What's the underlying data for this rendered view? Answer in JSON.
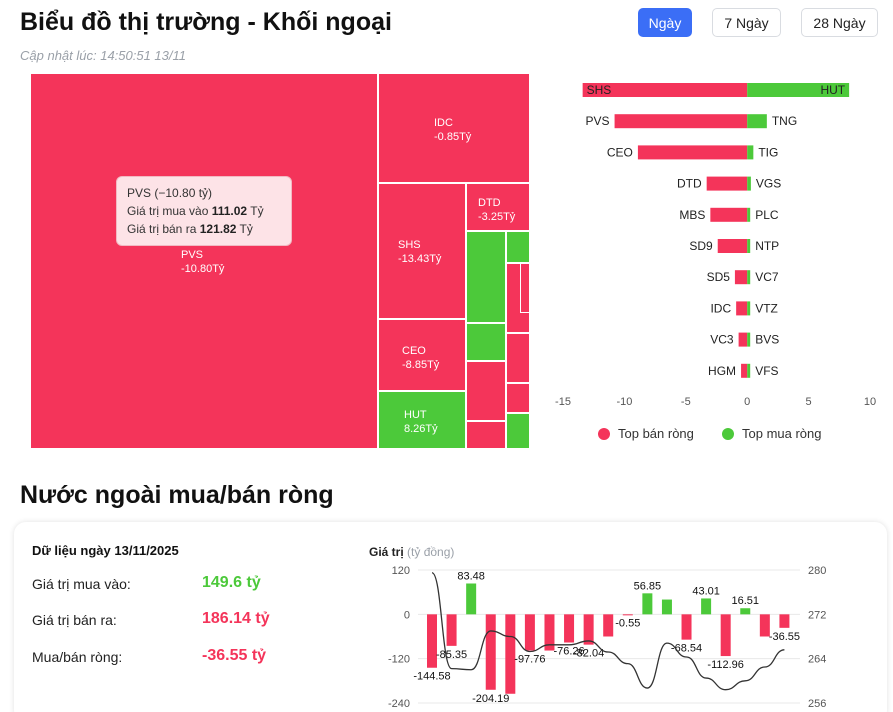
{
  "header": {
    "title": "Biểu đồ thị trường - Khối ngoại",
    "updated": "Cập nhật lúc: 14:50:51 13/11",
    "ranges": [
      {
        "label": "Ngày",
        "active": true
      },
      {
        "label": "7 Ngày",
        "active": false
      },
      {
        "label": "28 Ngày",
        "active": false
      }
    ]
  },
  "colors": {
    "sell": "#f4345a",
    "buy": "#4cc93a",
    "line": "#333333",
    "grid": "#e8e8e8"
  },
  "treemap": {
    "cells": [
      {
        "ticker": "PVS",
        "value": "-10.80Tỷ",
        "side": "sell"
      },
      {
        "ticker": "IDC",
        "value": "-0.85Tỷ",
        "side": "sell"
      },
      {
        "ticker": "SHS",
        "value": "-13.43Tỷ",
        "side": "sell"
      },
      {
        "ticker": "DTD",
        "value": "-3.25Tỷ",
        "side": "sell"
      },
      {
        "ticker": "CEO",
        "value": "-8.85Tỷ",
        "side": "sell"
      },
      {
        "ticker": "HUT",
        "value": "8.26Tỷ",
        "side": "buy"
      }
    ],
    "tooltip": {
      "title": "PVS (−10.80 tỷ)",
      "buy_label": "Giá trị mua vào",
      "buy_value": "111.02",
      "sell_label": "Giá trị bán ra",
      "sell_value": "121.82",
      "unit": "Tỷ"
    }
  },
  "chart_data": [
    {
      "type": "bar",
      "orientation": "horizontal-diverging",
      "sell_categories": [
        "SHS",
        "PVS",
        "CEO",
        "DTD",
        "MBS",
        "SD9",
        "SD5",
        "IDC",
        "VC3",
        "HGM"
      ],
      "sell_values": [
        -13.4,
        -10.8,
        -8.9,
        -3.3,
        -3.0,
        -2.4,
        -1.0,
        -0.9,
        -0.7,
        -0.5
      ],
      "buy_categories": [
        "HUT",
        "TNG",
        "TIG",
        "VGS",
        "PLC",
        "NTP",
        "VC7",
        "VTZ",
        "BVS",
        "VFS"
      ],
      "buy_values": [
        8.3,
        1.6,
        0.5,
        0.3,
        0.2,
        0.2,
        0.1,
        0.1,
        0.1,
        0.05
      ],
      "xlim": [
        -15,
        10
      ],
      "xticks": [
        -15,
        -10,
        -5,
        0,
        5,
        10
      ],
      "legend": [
        {
          "name": "Top bán ròng",
          "color": "#f4345a"
        },
        {
          "name": "Top mua ròng",
          "color": "#4cc93a"
        }
      ]
    },
    {
      "type": "bar+line",
      "title": "Giá trị",
      "unit": "(tỷ đồng)",
      "bars": [
        -144.58,
        -85.35,
        83.48,
        -204.19,
        -215,
        -97.76,
        -98,
        -76.26,
        -82.04,
        -60,
        -0.55,
        56.85,
        40,
        -68.54,
        43.01,
        -112.96,
        16.51,
        -60,
        -36.55
      ],
      "bar_labels": [
        "-144.58",
        "-85.35",
        "83.48",
        "-204.19",
        "",
        "-97.76",
        "",
        "-76.26",
        "-82.04",
        "",
        "-0.55",
        "56.85",
        "",
        "-68.54",
        "43.01",
        "-112.96",
        "16.51",
        "",
        "-36.55"
      ],
      "line": [
        279.5,
        262.2,
        262.0,
        269.0,
        268.0,
        265.3,
        266.5,
        266.5,
        267.2,
        265.2,
        263.1,
        258.7,
        266.8,
        264.3,
        260.5,
        258.4,
        260.0,
        262.5,
        265.6
      ],
      "y_left": {
        "min": -240,
        "max": 120,
        "ticks": [
          "120",
          "0",
          "-120",
          "-240"
        ]
      },
      "y_right": {
        "min": 256,
        "max": 280,
        "ticks": [
          "280",
          "272",
          "264",
          "256"
        ]
      }
    }
  ],
  "summary": {
    "date_label": "Dữ liệu ngày 13/11/2025",
    "section_title": "Nước ngoài mua/bán ròng",
    "rows": [
      {
        "label": "Giá trị mua vào:",
        "value": "149.6 tỷ",
        "color": "#4cc93a"
      },
      {
        "label": "Giá trị bán ra:",
        "value": "186.14 tỷ",
        "color": "#f4345a"
      },
      {
        "label": "Mua/bán ròng:",
        "value": "-36.55 tỷ",
        "color": "#f4345a"
      }
    ]
  }
}
